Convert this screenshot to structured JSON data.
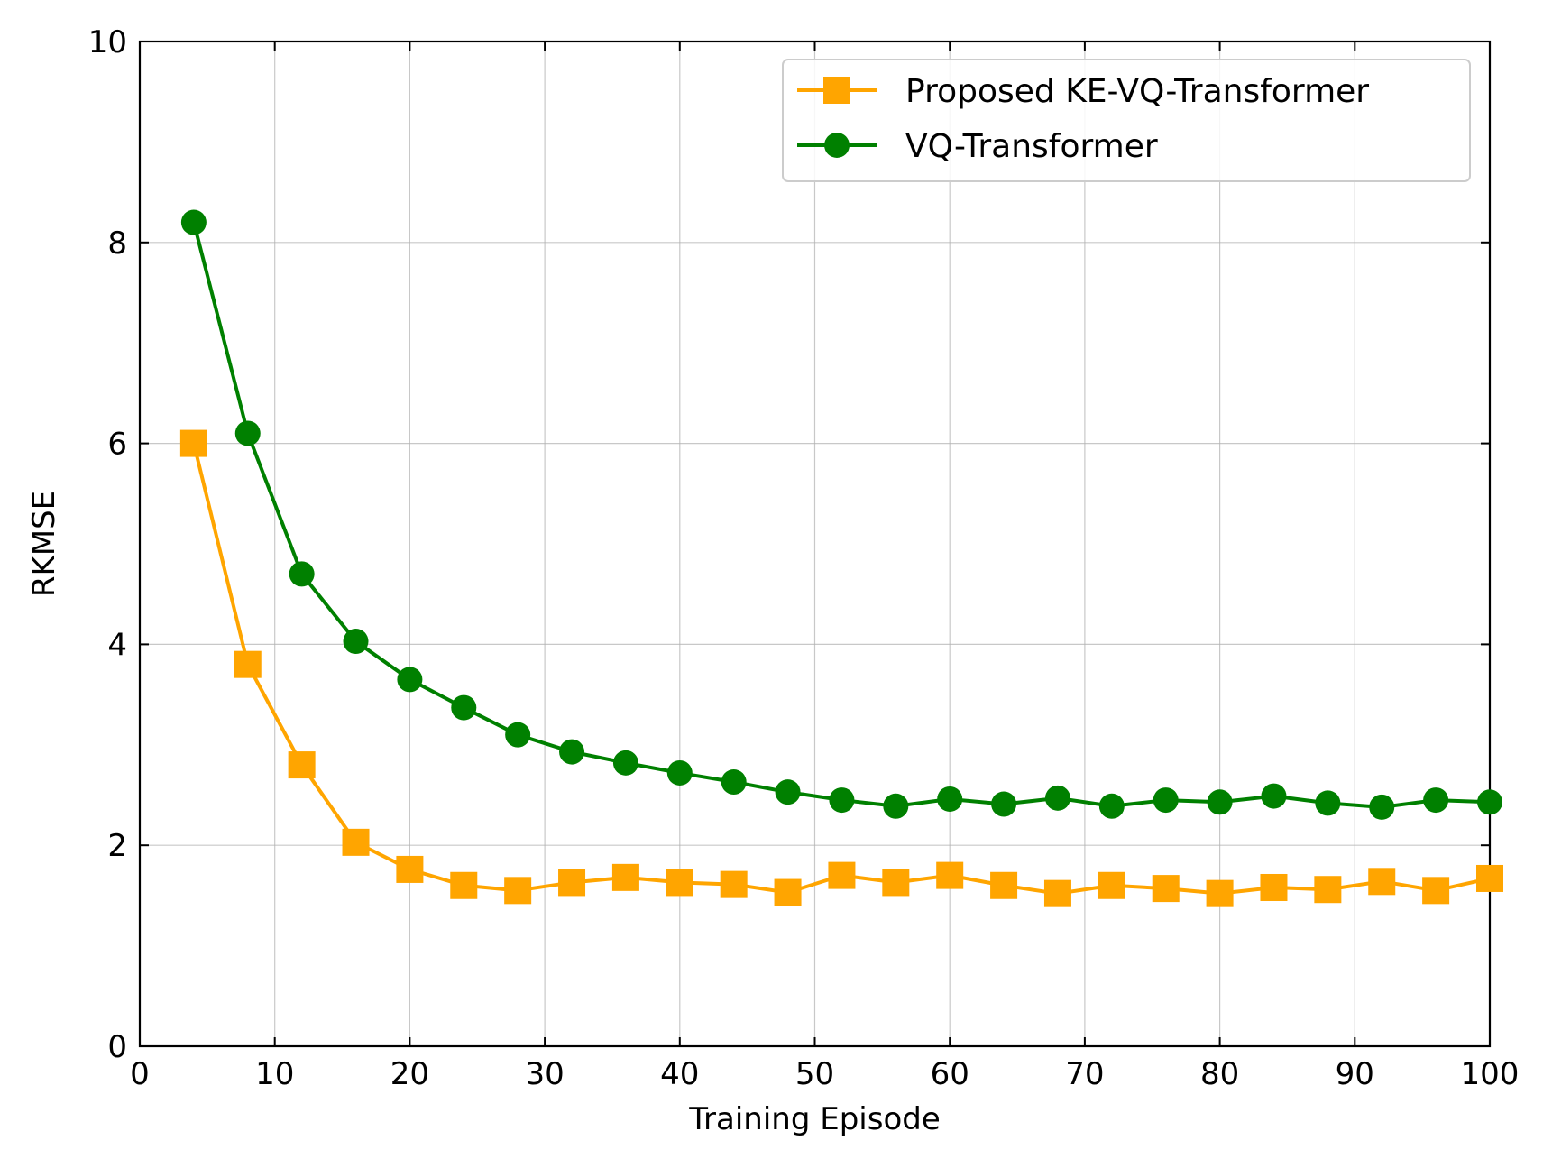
{
  "chart_data": {
    "type": "line",
    "title": "",
    "xlabel": "Training Episode",
    "ylabel": "RKMSE",
    "xlim": [
      0,
      100
    ],
    "ylim": [
      0,
      10
    ],
    "xticks": [
      0,
      10,
      20,
      30,
      40,
      50,
      60,
      70,
      80,
      90,
      100
    ],
    "yticks": [
      0,
      2,
      4,
      6,
      8,
      10
    ],
    "grid": true,
    "legend_position": "top-right",
    "x": [
      4,
      8,
      12,
      16,
      20,
      24,
      28,
      32,
      36,
      40,
      44,
      48,
      52,
      56,
      60,
      64,
      68,
      72,
      76,
      80,
      84,
      88,
      92,
      96,
      100
    ],
    "series": [
      {
        "name": "Proposed KE-VQ-Transformer",
        "color": "#FFA500",
        "marker": "square",
        "values": [
          6.0,
          3.8,
          2.8,
          2.03,
          1.76,
          1.6,
          1.55,
          1.63,
          1.68,
          1.63,
          1.61,
          1.53,
          1.7,
          1.63,
          1.7,
          1.6,
          1.52,
          1.6,
          1.57,
          1.52,
          1.58,
          1.56,
          1.64,
          1.55,
          1.67
        ]
      },
      {
        "name": "VQ-Transformer",
        "color": "#008000",
        "marker": "circle",
        "values": [
          8.2,
          6.1,
          4.7,
          4.03,
          3.65,
          3.37,
          3.1,
          2.93,
          2.82,
          2.72,
          2.63,
          2.53,
          2.45,
          2.39,
          2.46,
          2.41,
          2.47,
          2.39,
          2.45,
          2.43,
          2.49,
          2.42,
          2.38,
          2.45,
          2.43
        ]
      }
    ]
  }
}
